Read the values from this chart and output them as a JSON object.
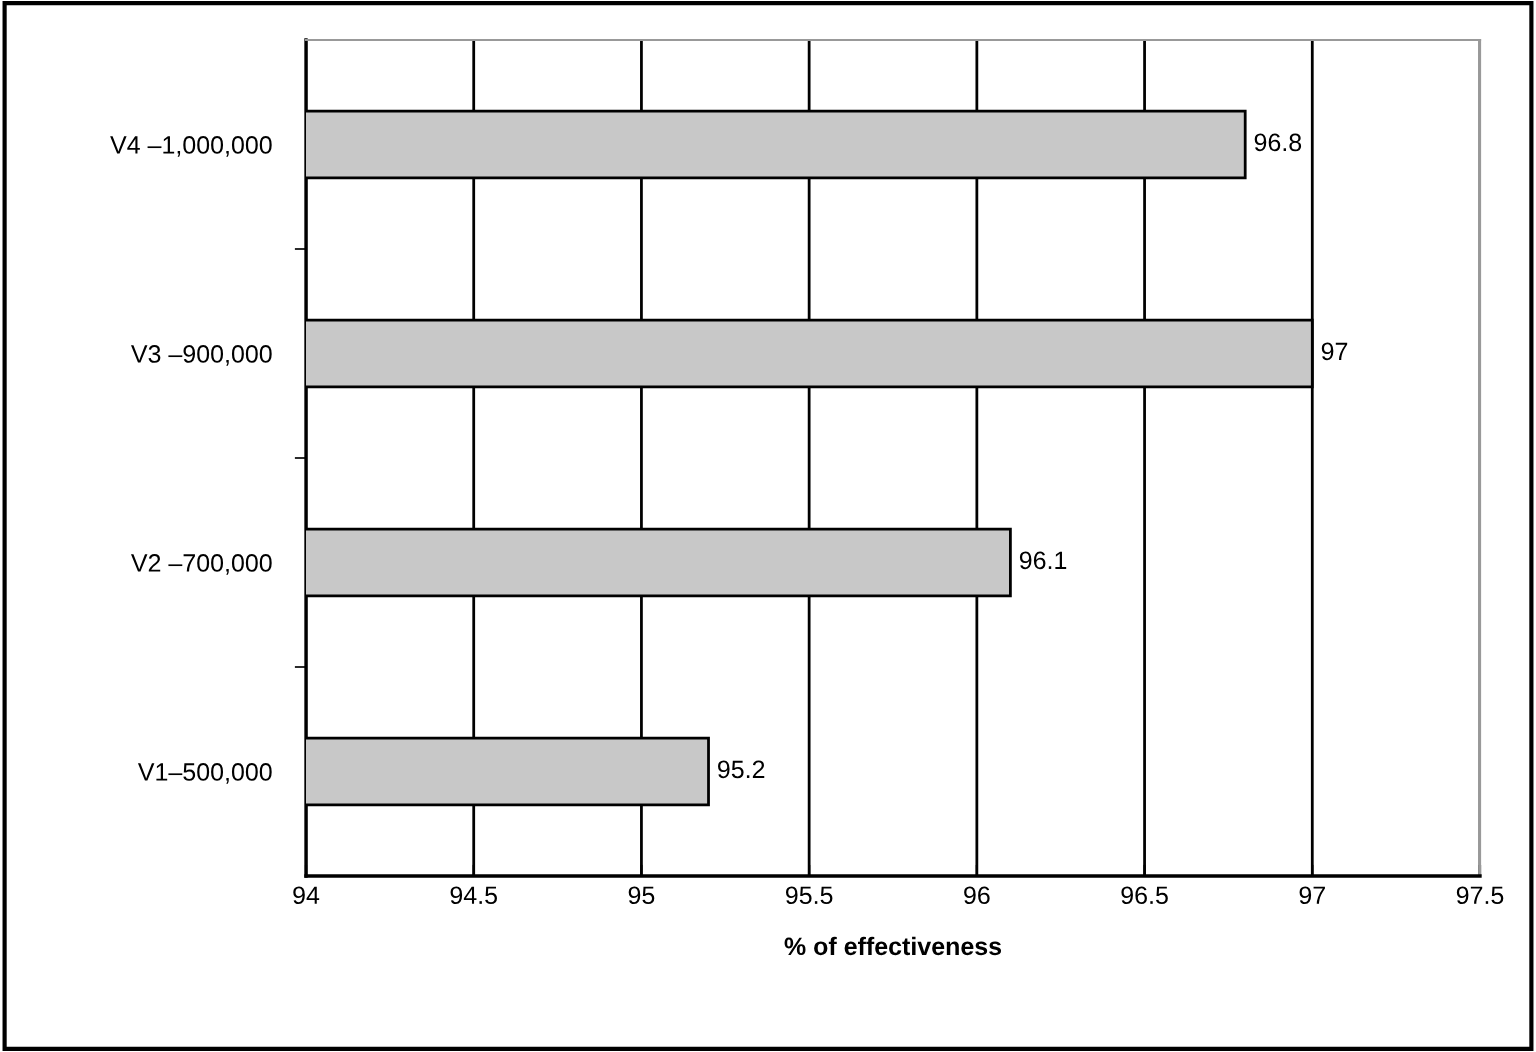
{
  "chart_data": {
    "type": "bar",
    "orientation": "horizontal",
    "categories": [
      "V4 –1,000,000",
      "V3 –900,000",
      "V2 –700,000",
      "V1–500,000"
    ],
    "values": [
      96.8,
      97,
      96.1,
      95.2
    ],
    "color": "#c8c8c8",
    "xlabel": "% of effectiveness",
    "xlim": [
      94,
      97.5
    ],
    "xticks": [
      94,
      94.5,
      95,
      95.5,
      96,
      96.5,
      97,
      97.5
    ],
    "grid": "x",
    "data_labels": true,
    "legend": false
  }
}
